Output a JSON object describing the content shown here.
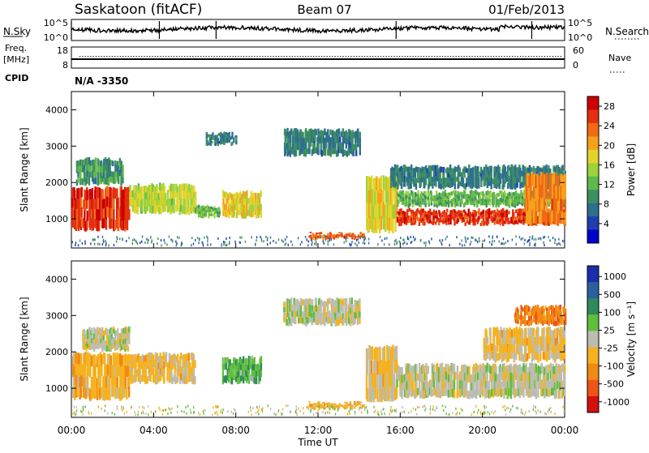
{
  "header": {
    "station": "Saskatoon (fitACF)",
    "beam": "Beam 07",
    "date": "01/Feb/2013"
  },
  "noise_panel": {
    "left_label": "N.Sky",
    "left_ticks": [
      "10^5",
      "10^0"
    ],
    "right_label": "N.Search",
    "right_ticks": [
      "10^5",
      "10^0"
    ]
  },
  "freq_panel": {
    "left_label_1": "Freq.",
    "left_label_2": "[MHz]",
    "left_ticks": [
      "18",
      "8"
    ],
    "right_label": "Nave",
    "right_ticks": [
      "60",
      "0"
    ]
  },
  "cpid": {
    "label": "CPID",
    "value": "N/A -3350"
  },
  "colors": {
    "power": [
      "#0000cc",
      "#1f3fb0",
      "#2e6e8e",
      "#3c8f5f",
      "#5fb84c",
      "#9cd23b",
      "#e3d32b",
      "#f5a11e",
      "#f06a14",
      "#e3300e",
      "#cc0000"
    ],
    "velocity": [
      "#1a2fa8",
      "#2b5fa0",
      "#2e8a5a",
      "#5fbf3c",
      "#bcbcb0",
      "#f6b21e",
      "#f08a14",
      "#ee5514",
      "#d41010"
    ]
  },
  "chart_data": [
    {
      "type": "heatmap",
      "name": "power",
      "xlabel": "",
      "ylabel": "Slant Range [km]",
      "x_ticks": [
        "00:00",
        "04:00",
        "08:00",
        "12:00",
        "16:00",
        "20:00",
        "00:00"
      ],
      "xlim": [
        0,
        24
      ],
      "ylim": [
        200,
        4500
      ],
      "y_ticks": [
        1000,
        2000,
        3000,
        4000
      ],
      "colorbar": {
        "label": "Power [dB]",
        "ticks": [
          "4",
          "8",
          "12",
          "16",
          "20",
          "24",
          "28"
        ],
        "range": [
          0,
          30
        ]
      },
      "regions": [
        {
          "t0": 0.0,
          "t1": 2.8,
          "r0": 650,
          "r1": 1900,
          "level": 26
        },
        {
          "t0": 0.2,
          "t1": 2.5,
          "r0": 1900,
          "r1": 2700,
          "level": 10
        },
        {
          "t0": 2.8,
          "t1": 6.0,
          "r0": 1100,
          "r1": 2000,
          "level": 16
        },
        {
          "t0": 6.0,
          "t1": 7.2,
          "r0": 1000,
          "r1": 1400,
          "level": 12
        },
        {
          "t0": 7.3,
          "t1": 9.2,
          "r0": 1000,
          "r1": 1800,
          "level": 18
        },
        {
          "t0": 10.3,
          "t1": 14.0,
          "r0": 2700,
          "r1": 3500,
          "level": 8
        },
        {
          "t0": 6.5,
          "t1": 8.0,
          "r0": 3000,
          "r1": 3400,
          "level": 8
        },
        {
          "t0": 11.5,
          "t1": 14.2,
          "r0": 400,
          "r1": 650,
          "level": 24
        },
        {
          "t0": 14.3,
          "t1": 15.8,
          "r0": 600,
          "r1": 2200,
          "level": 18
        },
        {
          "t0": 15.8,
          "t1": 24.0,
          "r0": 800,
          "r1": 1300,
          "level": 26
        },
        {
          "t0": 15.8,
          "t1": 24.0,
          "r0": 1300,
          "r1": 1800,
          "level": 12
        },
        {
          "t0": 15.5,
          "t1": 24.0,
          "r0": 1800,
          "r1": 2500,
          "level": 8
        },
        {
          "t0": 22.0,
          "t1": 24.0,
          "r0": 800,
          "r1": 2300,
          "level": 22
        }
      ]
    },
    {
      "type": "heatmap",
      "name": "velocity",
      "xlabel": "Time UT",
      "ylabel": "Slant Range [km]",
      "x_ticks": [
        "00:00",
        "04:00",
        "08:00",
        "12:00",
        "16:00",
        "20:00",
        "00:00"
      ],
      "xlim": [
        0,
        24
      ],
      "ylim": [
        200,
        4500
      ],
      "y_ticks": [
        1000,
        2000,
        3000,
        4000
      ],
      "colorbar": {
        "label": "Velocity [m s⁻¹]",
        "ticks": [
          "1000",
          "500",
          "100",
          "25",
          "-25",
          "-100",
          "-500",
          "-1000"
        ],
        "range": [
          -1200,
          1200
        ]
      },
      "regions": [
        {
          "t0": 0.0,
          "t1": 2.8,
          "r0": 650,
          "r1": 2000,
          "level": -300
        },
        {
          "t0": 0.5,
          "t1": 2.8,
          "r0": 2000,
          "r1": 2700,
          "level": 0
        },
        {
          "t0": 2.8,
          "t1": 6.0,
          "r0": 1100,
          "r1": 2000,
          "level": -200
        },
        {
          "t0": 7.3,
          "t1": 9.2,
          "r0": 1100,
          "r1": 1900,
          "level": 300
        },
        {
          "t0": 10.3,
          "t1": 14.0,
          "r0": 2700,
          "r1": 3500,
          "level": 0
        },
        {
          "t0": 11.5,
          "t1": 14.2,
          "r0": 400,
          "r1": 650,
          "level": -300
        },
        {
          "t0": 14.3,
          "t1": 15.8,
          "r0": 600,
          "r1": 2200,
          "level": -200
        },
        {
          "t0": 15.8,
          "t1": 24.0,
          "r0": 700,
          "r1": 1700,
          "level": 0
        },
        {
          "t0": 20.0,
          "t1": 24.0,
          "r0": 1700,
          "r1": 2700,
          "level": -200
        },
        {
          "t0": 21.5,
          "t1": 24.0,
          "r0": 2700,
          "r1": 3300,
          "level": -600
        }
      ]
    }
  ]
}
